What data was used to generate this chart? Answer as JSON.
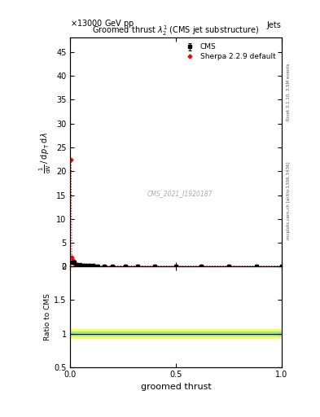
{
  "title": "Groomed thrust $\\lambda_2^1$ (CMS jet substructure)",
  "top_left_label": "\\u00d713000 GeV pp",
  "top_right_label": "Jets",
  "right_label_top": "Rivet 3.1.10, 3.5M events",
  "right_label_bottom": "mcplots.cern.ch [arXiv:1306.3436]",
  "watermark": "CMS_2021_I1920187",
  "xlabel": "groomed thrust",
  "ylabel_main_lines": [
    "1",
    "mathrm{d}N / mathrm{d} p_T mathrm{d} lambda"
  ],
  "ylabel_ratio": "Ratio to CMS",
  "ylim_main": [
    0,
    48
  ],
  "ylim_ratio": [
    0.5,
    2.0
  ],
  "xlim": [
    0,
    1
  ],
  "cms_x": [
    0.006,
    0.018,
    0.03,
    0.043,
    0.055,
    0.068,
    0.08,
    0.092,
    0.105,
    0.117,
    0.13,
    0.16,
    0.2,
    0.26,
    0.32,
    0.4,
    0.5,
    0.62,
    0.75,
    0.88,
    1.0
  ],
  "cms_y": [
    1.0,
    0.9,
    0.5,
    0.4,
    0.3,
    0.25,
    0.2,
    0.18,
    0.17,
    0.16,
    0.15,
    0.14,
    0.13,
    0.13,
    0.12,
    0.12,
    0.12,
    0.11,
    0.11,
    0.11,
    0.12
  ],
  "cms_yerr": [
    0.08,
    0.06,
    0.05,
    0.04,
    0.03,
    0.02,
    0.015,
    0.012,
    0.01,
    0.01,
    0.01,
    0.01,
    0.01,
    0.01,
    0.01,
    0.01,
    0.01,
    0.01,
    0.01,
    0.01,
    0.01
  ],
  "sherpa_x": [
    0.003,
    0.006,
    0.012,
    0.018,
    0.025,
    0.032,
    0.04,
    0.05,
    0.062,
    0.075,
    0.09,
    0.11,
    0.13,
    0.16,
    0.2,
    0.26,
    0.32,
    0.4,
    0.5,
    0.62,
    0.75,
    0.88,
    1.0
  ],
  "sherpa_y": [
    22.5,
    2.0,
    1.2,
    0.7,
    0.5,
    0.4,
    0.3,
    0.25,
    0.22,
    0.2,
    0.18,
    0.17,
    0.16,
    0.15,
    0.14,
    0.13,
    0.13,
    0.12,
    0.12,
    0.11,
    0.11,
    0.11,
    0.12
  ],
  "yticks_main": [
    0,
    5,
    10,
    15,
    20,
    25,
    30,
    35,
    40,
    45
  ],
  "yticks_ratio": [
    0.5,
    1.0,
    1.5,
    2.0
  ],
  "xticks": [
    0.0,
    0.5,
    1.0
  ],
  "ratio_green_band": [
    0.97,
    1.03
  ],
  "ratio_yellow_band": [
    0.93,
    1.07
  ],
  "cms_color": "#000000",
  "sherpa_color": "#ff0000",
  "background_color": "#ffffff",
  "grid_color": "#cccccc"
}
